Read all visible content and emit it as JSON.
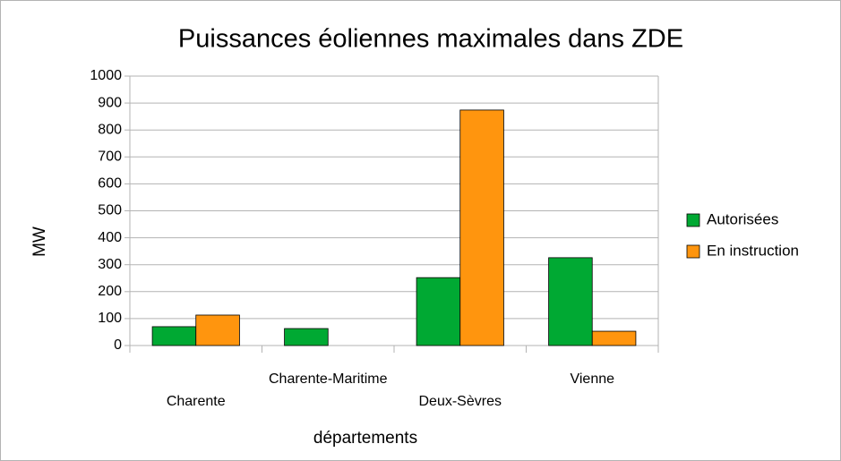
{
  "chart_data": {
    "type": "bar",
    "title": "Puissances éoliennes maximales dans ZDE",
    "x_label": "départements",
    "y_label": "MW",
    "categories": [
      "Charente",
      "Charente-Maritime",
      "Deux-Sèvres",
      "Vienne"
    ],
    "series": [
      {
        "name": "Autorisées",
        "color": "#00a933",
        "values": [
          70,
          63,
          252,
          326
        ]
      },
      {
        "name": "En instruction",
        "color": "#ff950e",
        "values": [
          113,
          null,
          874,
          53
        ]
      }
    ],
    "ylim": [
      0,
      1000
    ],
    "yticks": [
      0,
      100,
      200,
      300,
      400,
      500,
      600,
      700,
      800,
      900,
      1000
    ],
    "grid": true,
    "legend": "right"
  }
}
